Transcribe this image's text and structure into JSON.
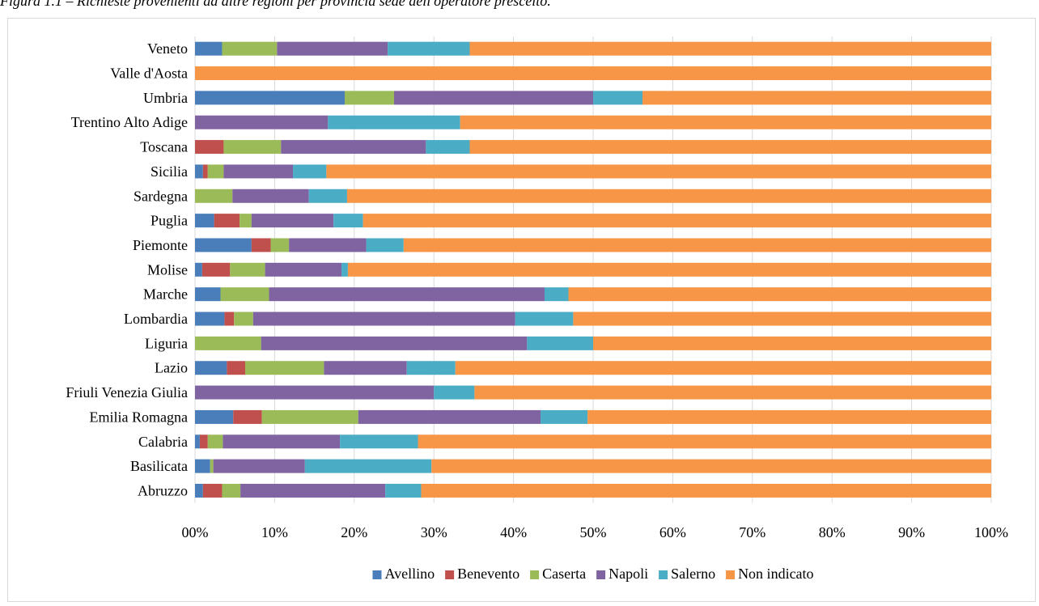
{
  "caption": "Figura 1.1 – Richieste provenienti da altre regioni per provincia sede dell'operatore prescelto.",
  "colors": {
    "Avellino": "#4a7ebb",
    "Benevento": "#c0504d",
    "Caserta": "#9bbb59",
    "Napoli": "#8064a2",
    "Salerno": "#4bacc6",
    "Non indicato": "#f79646",
    "grid": "#d9d9d9",
    "frame": "#d9d9d9"
  },
  "chart_data": {
    "type": "bar",
    "orientation": "horizontal",
    "stacked": "percent",
    "title": "",
    "xlabel": "",
    "ylabel": "",
    "xlim": [
      0,
      100
    ],
    "x_ticks": [
      "00%",
      "10%",
      "20%",
      "30%",
      "40%",
      "50%",
      "60%",
      "70%",
      "80%",
      "90%",
      "100%"
    ],
    "grid": "vertical",
    "legend_position": "bottom",
    "categories": [
      "Veneto",
      "Valle d'Aosta",
      "Umbria",
      "Trentino Alto Adige",
      "Toscana",
      "Sicilia",
      "Sardegna",
      "Puglia",
      "Piemonte",
      "Molise",
      "Marche",
      "Lombardia",
      "Liguria",
      "Lazio",
      "Friuli Venezia Giulia",
      "Emilia Romagna",
      "Calabria",
      "Basilicata",
      "Abruzzo"
    ],
    "series": [
      {
        "name": "Avellino",
        "values": [
          3.4,
          0,
          18.8,
          0,
          0,
          1.0,
          0,
          2.4,
          7.1,
          0.9,
          3.2,
          3.7,
          0,
          4.0,
          0,
          4.8,
          0.6,
          1.9,
          1.0
        ]
      },
      {
        "name": "Benevento",
        "values": [
          0,
          0,
          0,
          0,
          3.6,
          0.6,
          0,
          3.2,
          2.4,
          3.5,
          0,
          1.2,
          0,
          2.3,
          0,
          3.6,
          1.0,
          0,
          2.4
        ]
      },
      {
        "name": "Caserta",
        "values": [
          6.9,
          0,
          6.2,
          0,
          7.2,
          2.0,
          4.7,
          1.5,
          2.3,
          4.4,
          6.1,
          2.4,
          8.3,
          9.9,
          0,
          12.1,
          1.9,
          0.4,
          2.3
        ]
      },
      {
        "name": "Napoli",
        "values": [
          13.9,
          0,
          25.0,
          16.7,
          18.2,
          8.7,
          9.6,
          10.3,
          9.7,
          9.6,
          34.6,
          32.9,
          33.4,
          10.4,
          30.0,
          22.9,
          14.7,
          11.5,
          18.2
        ]
      },
      {
        "name": "Salerno",
        "values": [
          10.3,
          0,
          6.2,
          16.6,
          5.5,
          4.2,
          4.8,
          3.7,
          4.7,
          0.8,
          3.0,
          7.3,
          8.3,
          6.1,
          5.1,
          5.9,
          9.8,
          15.9,
          4.5
        ]
      },
      {
        "name": "Non indicato",
        "values": [
          65.5,
          100,
          43.8,
          66.7,
          65.5,
          83.5,
          80.9,
          78.9,
          73.8,
          80.8,
          53.1,
          52.5,
          50.0,
          67.3,
          64.9,
          50.7,
          72.0,
          70.3,
          71.6
        ]
      }
    ]
  }
}
